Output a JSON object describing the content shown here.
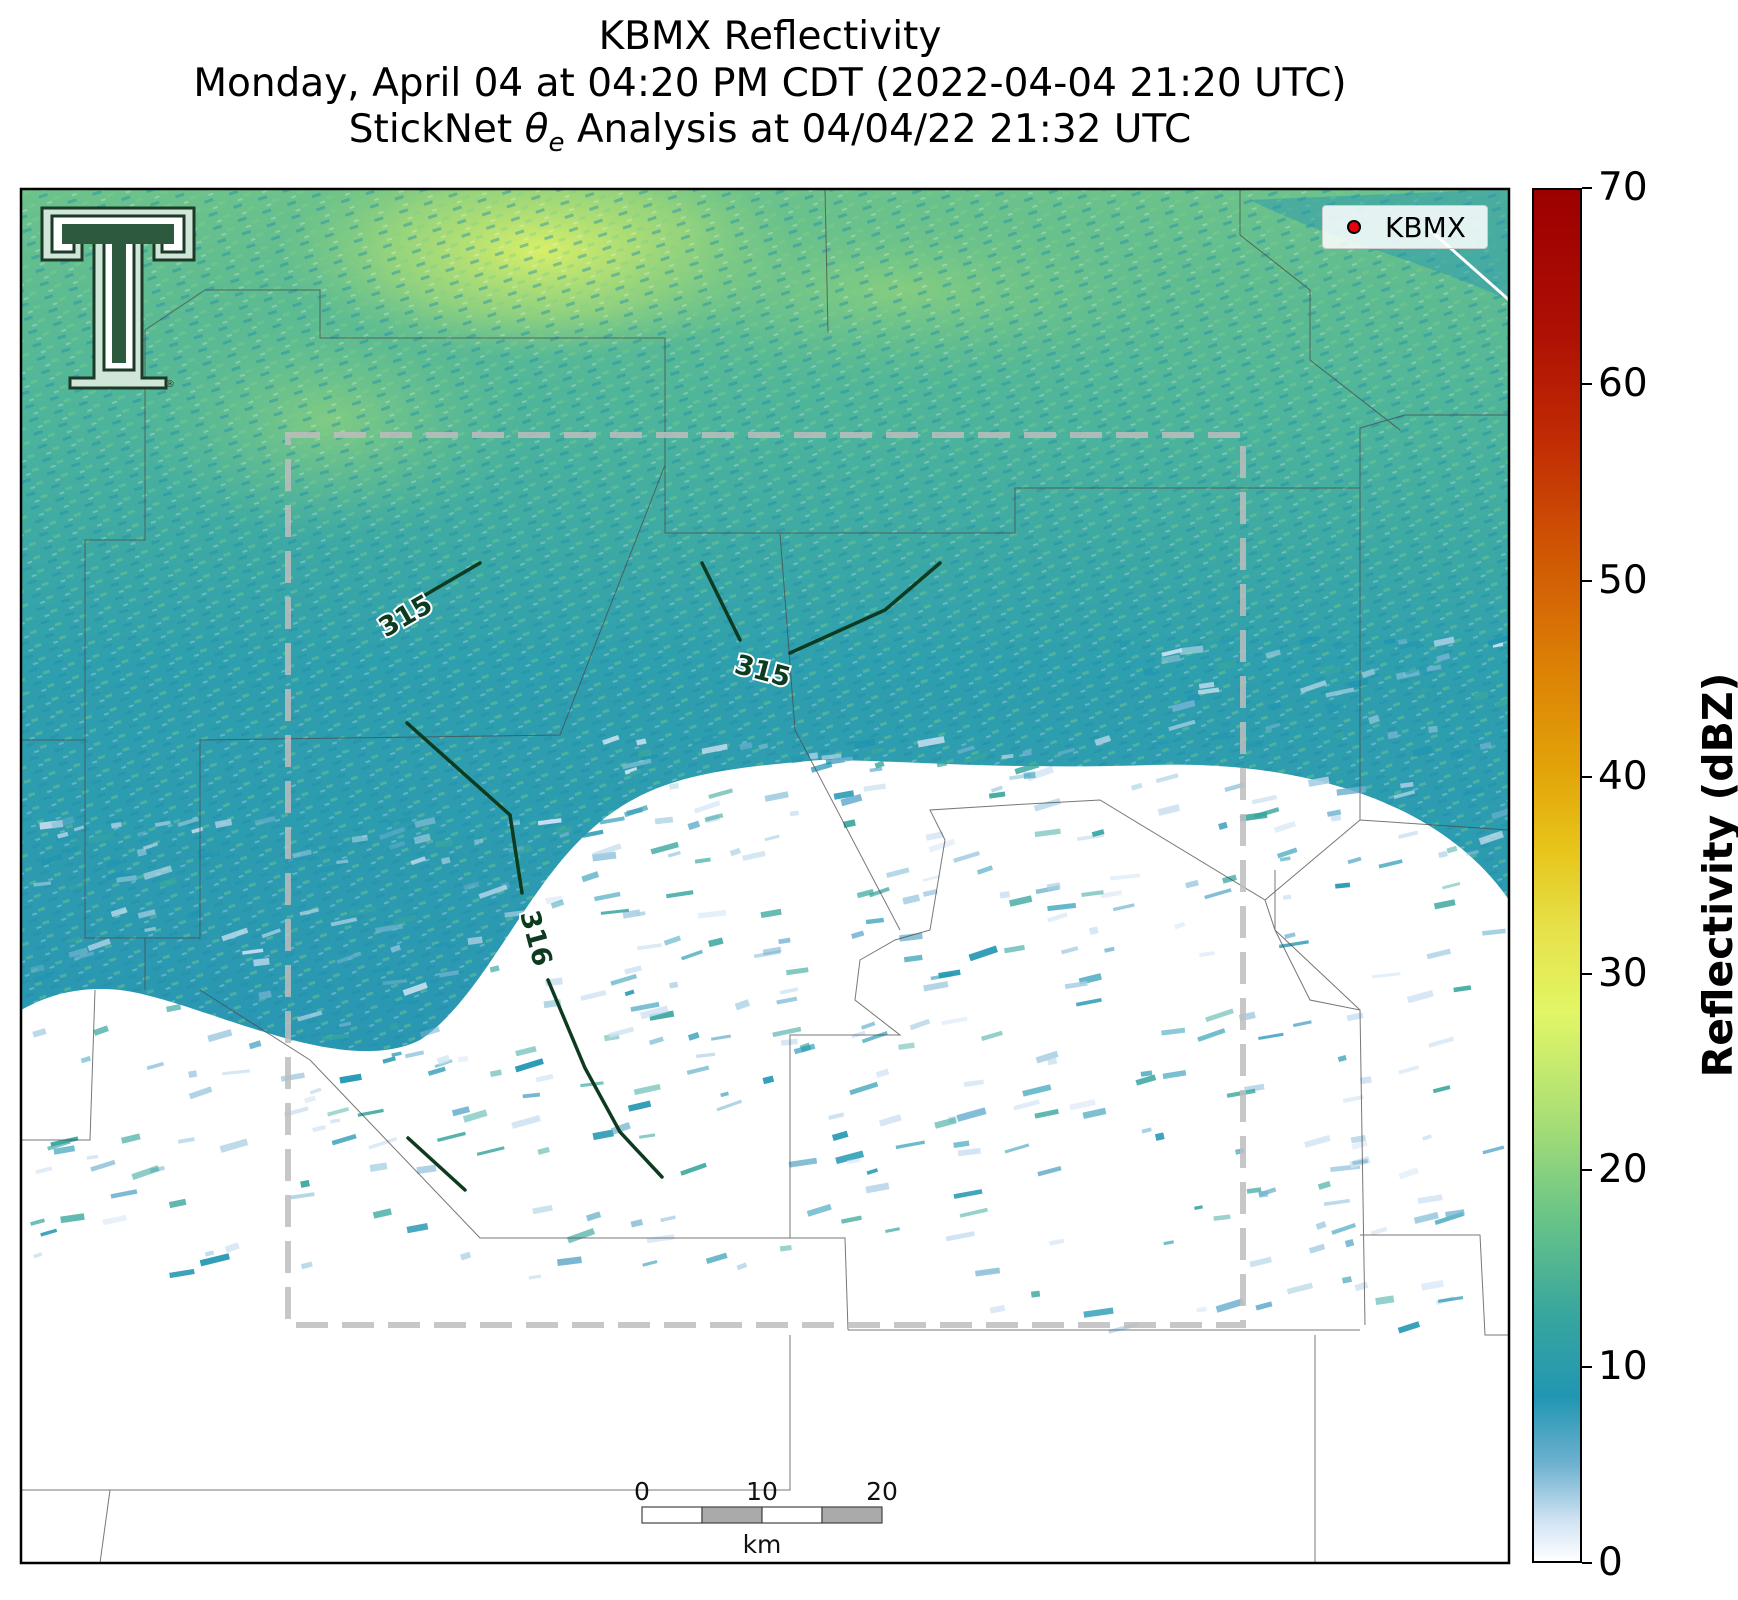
{
  "title": {
    "line1": "KBMX Reflectivity",
    "line2": "Monday, April 04 at 04:20 PM CDT (2022-04-04 21:20 UTC)",
    "line3_prefix": "StickNet ",
    "line3_symbol": "θ",
    "line3_subscript": "e",
    "line3_suffix": " Analysis at 04/04/22 21:32 UTC"
  },
  "legend": {
    "label": "KBMX",
    "marker_color": "#e8000b"
  },
  "logo": {
    "icon": "texas-tech-double-t-logo",
    "mark": "®"
  },
  "contours": {
    "line_color": "#0d3b1f",
    "labels": [
      "315",
      "315",
      "316"
    ]
  },
  "analysis_box": {
    "style": "dashed",
    "color": "#bdbdbd"
  },
  "scale_bar": {
    "ticks": [
      "0",
      "10",
      "20"
    ],
    "unit": "km"
  },
  "colorbar": {
    "label": "Reflectivity (dBZ)",
    "ticks": [
      "70",
      "60",
      "50",
      "40",
      "30",
      "20",
      "10",
      "0"
    ],
    "min": 0,
    "max": 70
  },
  "colors": {
    "reflectivity_low": "#2196b2",
    "reflectivity_mid": "#68c487",
    "reflectivity_high": "#e2f666",
    "boundaries": "#555555"
  }
}
